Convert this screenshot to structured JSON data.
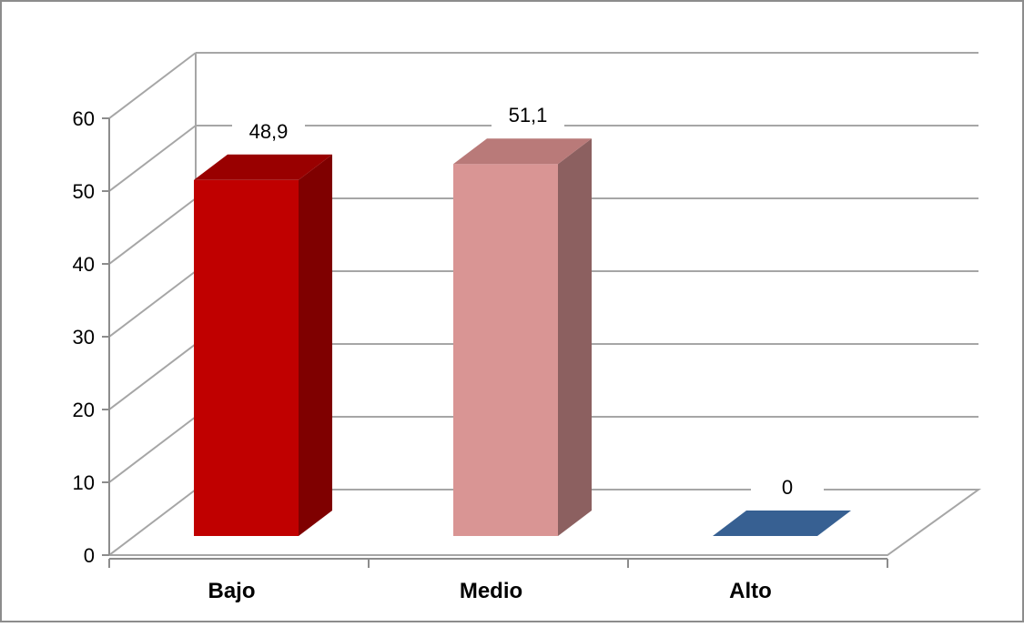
{
  "chart_data": {
    "type": "bar",
    "categories": [
      "Bajo",
      "Medio",
      "Alto"
    ],
    "values": [
      48.9,
      51.1,
      0
    ],
    "value_labels": [
      "48,9",
      "51,1",
      "0"
    ],
    "colors": [
      "#c00000",
      "#d99594",
      "#376092"
    ],
    "side_colors": [
      "#7f0000",
      "#8c6060",
      "#2a4a70"
    ],
    "top_colors": [
      "#990000",
      "#b97a79",
      "#3b6596"
    ],
    "title": "",
    "xlabel": "",
    "ylabel": "",
    "ylim": [
      0,
      60
    ],
    "yticks": [
      "0",
      "10",
      "20",
      "30",
      "40",
      "50",
      "60"
    ],
    "grid": true,
    "legend": "none",
    "style": "3d-column"
  }
}
